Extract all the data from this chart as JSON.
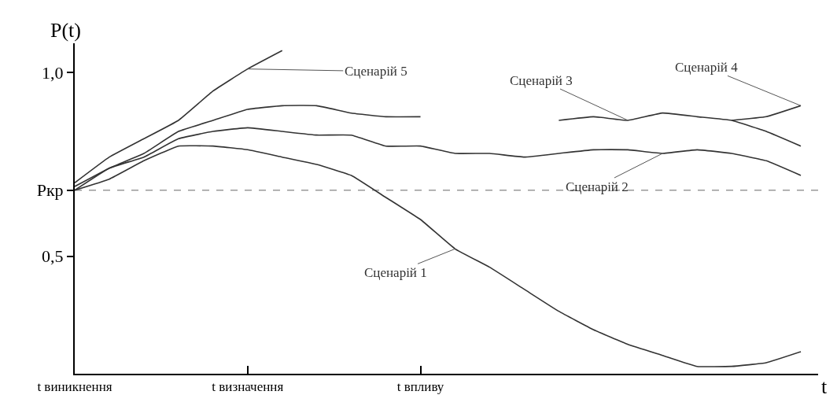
{
  "chart_data": {
    "type": "line",
    "xlabel": "t",
    "ylabel": "P(t)",
    "categories": [
      "t виникнення",
      null,
      null,
      null,
      null,
      "t визначення",
      null,
      null,
      null,
      null,
      "t впливу",
      null,
      null,
      null,
      null,
      null,
      null,
      null,
      null,
      null,
      null,
      null
    ],
    "ylim": [
      0.18,
      1.08
    ],
    "yticks": [
      {
        "value": 0.5,
        "label": "0,5"
      },
      {
        "value": 0.68,
        "label": "Pкр"
      },
      {
        "value": 1.0,
        "label": "1,0"
      }
    ],
    "grid": false,
    "marker": "none",
    "line_style": "solid",
    "series": [
      {
        "name": "Сценарій 1",
        "color": "#333333",
        "values": [
          0.68,
          0.71,
          0.76,
          0.8,
          0.8,
          0.79,
          0.77,
          0.75,
          0.72,
          0.66,
          0.6,
          0.52,
          0.47,
          0.41,
          0.35,
          0.3,
          0.26,
          0.23,
          0.2,
          0.2,
          0.21,
          0.24
        ]
      },
      {
        "name": "Сценарій 2",
        "color": "#333333",
        "values": [
          0.68,
          0.74,
          0.77,
          0.82,
          0.84,
          0.85,
          0.84,
          0.83,
          0.83,
          0.8,
          0.8,
          0.78,
          0.78,
          0.77,
          0.78,
          0.79,
          0.79,
          0.78,
          0.79,
          0.78,
          0.76,
          0.72
        ]
      },
      {
        "name": "Сценарій 3",
        "color": "#333333",
        "values": [
          0.69,
          0.74,
          0.78,
          0.84,
          0.87,
          0.9,
          0.91,
          0.91,
          0.89,
          0.88,
          0.88,
          null,
          null,
          null,
          0.87,
          0.88,
          0.87,
          0.89,
          0.88,
          0.87,
          0.84,
          0.8
        ]
      },
      {
        "name": "Сценарій 4",
        "color": "#333333",
        "values": [
          null,
          null,
          null,
          null,
          null,
          null,
          null,
          null,
          null,
          null,
          null,
          null,
          null,
          null,
          null,
          null,
          null,
          null,
          null,
          0.87,
          0.88,
          0.91
        ]
      },
      {
        "name": "Сценарій 5",
        "color": "#333333",
        "values": [
          0.7,
          0.77,
          0.82,
          0.87,
          0.95,
          1.01,
          1.06,
          null,
          null,
          null,
          null,
          null,
          null,
          null,
          null,
          null,
          null,
          null,
          null,
          null,
          null,
          null
        ]
      }
    ],
    "ref_lines": [
      {
        "axis": "y",
        "value": 0.68,
        "color": "#999999",
        "line_style": "dashed"
      }
    ]
  }
}
